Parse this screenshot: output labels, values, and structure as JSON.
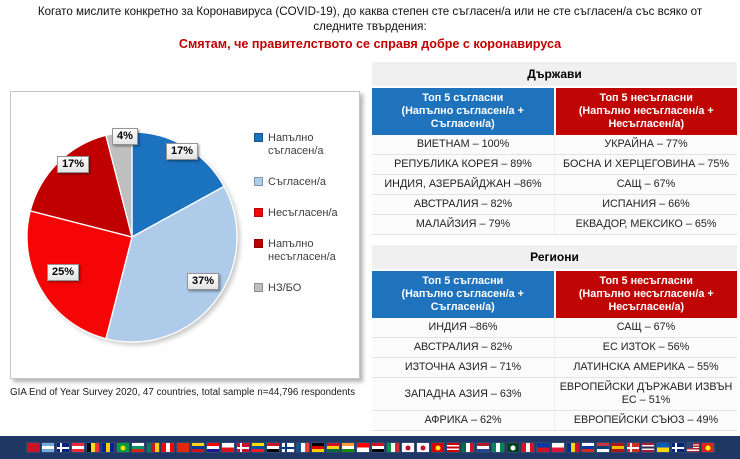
{
  "header": {
    "title_line1": "Когато мислите конкретно за Коронавируса (COVID-19), до каква степен сте съгласен/а или не сте съгласен/а със всяко от",
    "title_line2": "следните твърдения:",
    "subtitle": "Смятам, че правителството се справя добре с коронавируса",
    "subtitle_color": "#C00000"
  },
  "chart_data": {
    "type": "pie",
    "categories": [
      "Напълно съгласен/а",
      "Съгласен/а",
      "Несъгласен/а",
      "Напълно несъгласен/а",
      "НЗ/БО"
    ],
    "values": [
      17,
      37,
      25,
      17,
      4
    ],
    "labels": [
      "17%",
      "37%",
      "25%",
      "17%",
      "4%"
    ],
    "colors": [
      "#1B72BE",
      "#AECBEA",
      "#F50505",
      "#C00000",
      "#BFBFBF"
    ],
    "title": "",
    "legend_position": "right",
    "start_angle_deg": 0,
    "direction": "clockwise"
  },
  "footnote": "GIA End of Year Survey 2020, 47 countries,  total sample n=44,796 respondents",
  "tables": [
    {
      "title": "Държави",
      "columns": [
        {
          "line1": "Топ 5 съгласни",
          "line2": "(Напълно съгласен/а + Съгласен/а)",
          "color": "#1E73BC"
        },
        {
          "line1": "Топ 5 несъгласни",
          "line2": "(Напълно несъгласен/а + Несъгласен/а)",
          "color": "#C00505"
        }
      ],
      "rows": [
        [
          "ВИЕТНАМ – 100%",
          "УКРАЙНА – 77%"
        ],
        [
          "РЕПУБЛИКА КОРЕЯ – 89%",
          "БОСНА И ХЕРЦЕГОВИНА – 75%"
        ],
        [
          "ИНДИЯ, АЗЕРБАЙДЖАН –86%",
          "САЩ – 67%"
        ],
        [
          "АВСТРАЛИЯ – 82%",
          "ИСПАНИЯ – 66%"
        ],
        [
          "МАЛАЙЗИЯ – 79%",
          "ЕКВАДОР, МЕКСИКО – 65%"
        ]
      ]
    },
    {
      "title": "Региони",
      "columns": [
        {
          "line1": "Топ 5 съгласни",
          "line2": "(Напълно съгласен/а + Съгласен/а)",
          "color": "#1E73BC"
        },
        {
          "line1": "Топ 5 несъгласни",
          "line2": "(Напълно несъгласен/а + Несъгласен/а)",
          "color": "#C00505"
        }
      ],
      "rows": [
        [
          "ИНДИЯ –86%",
          "САЩ – 67%"
        ],
        [
          "АВСТРАЛИЯ – 82%",
          "ЕС ИЗТОК – 56%"
        ],
        [
          "ИЗТОЧНА АЗИЯ – 71%",
          "ЛАТИНСКА АМЕРИКА – 55%"
        ],
        [
          "ЗАПАДНА АЗИЯ – 63%",
          "ЕВРОПЕЙСКИ ДЪРЖАВИ ИЗВЪН ЕС – 51%"
        ],
        [
          "АФРИКА – 62%",
          "ЕВРОПЕЙСКИ СЪЮЗ – 49%"
        ]
      ]
    }
  ],
  "flags_strip": {
    "background": "#1E3765",
    "flags": [
      {
        "name": "albania",
        "type": "h",
        "colors": [
          "#CE1126"
        ]
      },
      {
        "name": "argentina",
        "type": "h",
        "colors": [
          "#74ACDF",
          "#FFFFFF",
          "#74ACDF"
        ]
      },
      {
        "name": "australia",
        "type": "cross",
        "colors": [
          "#00247D",
          "#FFFFFF"
        ]
      },
      {
        "name": "austria",
        "type": "h",
        "colors": [
          "#ED2939",
          "#FFFFFF",
          "#ED2939"
        ]
      },
      {
        "name": "belgium",
        "type": "v",
        "colors": [
          "#000000",
          "#FDDA24",
          "#EF3340"
        ]
      },
      {
        "name": "bosnia-herzegovina",
        "type": "v",
        "colors": [
          "#002395",
          "#FECB00",
          "#002395"
        ]
      },
      {
        "name": "brazil",
        "type": "disc",
        "colors": [
          "#009C3B",
          "#FFDF00"
        ]
      },
      {
        "name": "bulgaria",
        "type": "h",
        "colors": [
          "#FFFFFF",
          "#00966E",
          "#D62612"
        ]
      },
      {
        "name": "cameroon",
        "type": "v",
        "colors": [
          "#007A5E",
          "#CE1126",
          "#FCD116"
        ]
      },
      {
        "name": "canada",
        "type": "v",
        "colors": [
          "#FF0000",
          "#FFFFFF",
          "#FF0000"
        ]
      },
      {
        "name": "china",
        "type": "h",
        "colors": [
          "#DE2910"
        ]
      },
      {
        "name": "colombia",
        "type": "h",
        "colors": [
          "#FCD116",
          "#003893",
          "#CE1126"
        ]
      },
      {
        "name": "croatia",
        "type": "h",
        "colors": [
          "#FF0000",
          "#FFFFFF",
          "#171796"
        ]
      },
      {
        "name": "czechia",
        "type": "h",
        "colors": [
          "#FFFFFF",
          "#D7141A"
        ]
      },
      {
        "name": "denmark",
        "type": "cross",
        "colors": [
          "#C8102E",
          "#FFFFFF"
        ]
      },
      {
        "name": "ecuador",
        "type": "h",
        "colors": [
          "#FFDD00",
          "#034EA2",
          "#ED1C24"
        ]
      },
      {
        "name": "egypt",
        "type": "h",
        "colors": [
          "#CE1126",
          "#FFFFFF",
          "#000000"
        ]
      },
      {
        "name": "finland",
        "type": "cross",
        "colors": [
          "#FFFFFF",
          "#003580"
        ]
      },
      {
        "name": "france",
        "type": "v",
        "colors": [
          "#0055A4",
          "#FFFFFF",
          "#EF4135"
        ]
      },
      {
        "name": "germany",
        "type": "h",
        "colors": [
          "#000000",
          "#DD0000",
          "#FFCE00"
        ]
      },
      {
        "name": "ghana",
        "type": "h",
        "colors": [
          "#CE1126",
          "#FCD116",
          "#006B3F"
        ]
      },
      {
        "name": "india",
        "type": "h",
        "colors": [
          "#FF9933",
          "#FFFFFF",
          "#138808"
        ]
      },
      {
        "name": "indonesia",
        "type": "h",
        "colors": [
          "#FF0000",
          "#FFFFFF"
        ]
      },
      {
        "name": "iraq",
        "type": "h",
        "colors": [
          "#CE1126",
          "#FFFFFF",
          "#000000"
        ]
      },
      {
        "name": "italy",
        "type": "v",
        "colors": [
          "#009246",
          "#FFFFFF",
          "#CE2B37"
        ]
      },
      {
        "name": "japan",
        "type": "disc",
        "colors": [
          "#FFFFFF",
          "#BC002D"
        ]
      },
      {
        "name": "south-korea",
        "type": "disc",
        "colors": [
          "#FFFFFF",
          "#C60C30"
        ]
      },
      {
        "name": "north-macedonia",
        "type": "disc",
        "colors": [
          "#D20000",
          "#FFE600"
        ]
      },
      {
        "name": "malaysia",
        "type": "h",
        "colors": [
          "#CC0001",
          "#FFFFFF",
          "#CC0001",
          "#FFFFFF",
          "#CC0001"
        ]
      },
      {
        "name": "mexico",
        "type": "v",
        "colors": [
          "#006847",
          "#FFFFFF",
          "#CE1126"
        ]
      },
      {
        "name": "netherlands",
        "type": "h",
        "colors": [
          "#AE1C28",
          "#FFFFFF",
          "#21468B"
        ]
      },
      {
        "name": "nigeria",
        "type": "v",
        "colors": [
          "#008751",
          "#FFFFFF",
          "#008751"
        ]
      },
      {
        "name": "pakistan",
        "type": "disc",
        "colors": [
          "#01411C",
          "#FFFFFF"
        ]
      },
      {
        "name": "peru",
        "type": "v",
        "colors": [
          "#D91023",
          "#FFFFFF",
          "#D91023"
        ]
      },
      {
        "name": "philippines",
        "type": "h",
        "colors": [
          "#0038A8",
          "#CE1126"
        ]
      },
      {
        "name": "poland",
        "type": "h",
        "colors": [
          "#FFFFFF",
          "#DC143C"
        ]
      },
      {
        "name": "romania",
        "type": "v",
        "colors": [
          "#002B7F",
          "#FCD116",
          "#CE1126"
        ]
      },
      {
        "name": "russia",
        "type": "h",
        "colors": [
          "#FFFFFF",
          "#0039A6",
          "#D52B1E"
        ]
      },
      {
        "name": "serbia",
        "type": "h",
        "colors": [
          "#C6363C",
          "#0C4076",
          "#FFFFFF"
        ]
      },
      {
        "name": "spain",
        "type": "h",
        "colors": [
          "#AA151B",
          "#F1BF00",
          "#AA151B"
        ]
      },
      {
        "name": "switzerland",
        "type": "cross",
        "colors": [
          "#D52B1E",
          "#FFFFFF"
        ]
      },
      {
        "name": "thailand",
        "type": "h",
        "colors": [
          "#A51931",
          "#F4F5F8",
          "#2D2A4A",
          "#F4F5F8",
          "#A51931"
        ]
      },
      {
        "name": "ukraine",
        "type": "h",
        "colors": [
          "#005BBB",
          "#FFD500"
        ]
      },
      {
        "name": "united-kingdom",
        "type": "cross",
        "colors": [
          "#00247D",
          "#FFFFFF"
        ]
      },
      {
        "name": "usa",
        "type": "usa",
        "colors": [
          "#B22234",
          "#FFFFFF",
          "#3C3B6E"
        ]
      },
      {
        "name": "vietnam",
        "type": "disc",
        "colors": [
          "#DA251D",
          "#FFFF00"
        ]
      }
    ]
  }
}
